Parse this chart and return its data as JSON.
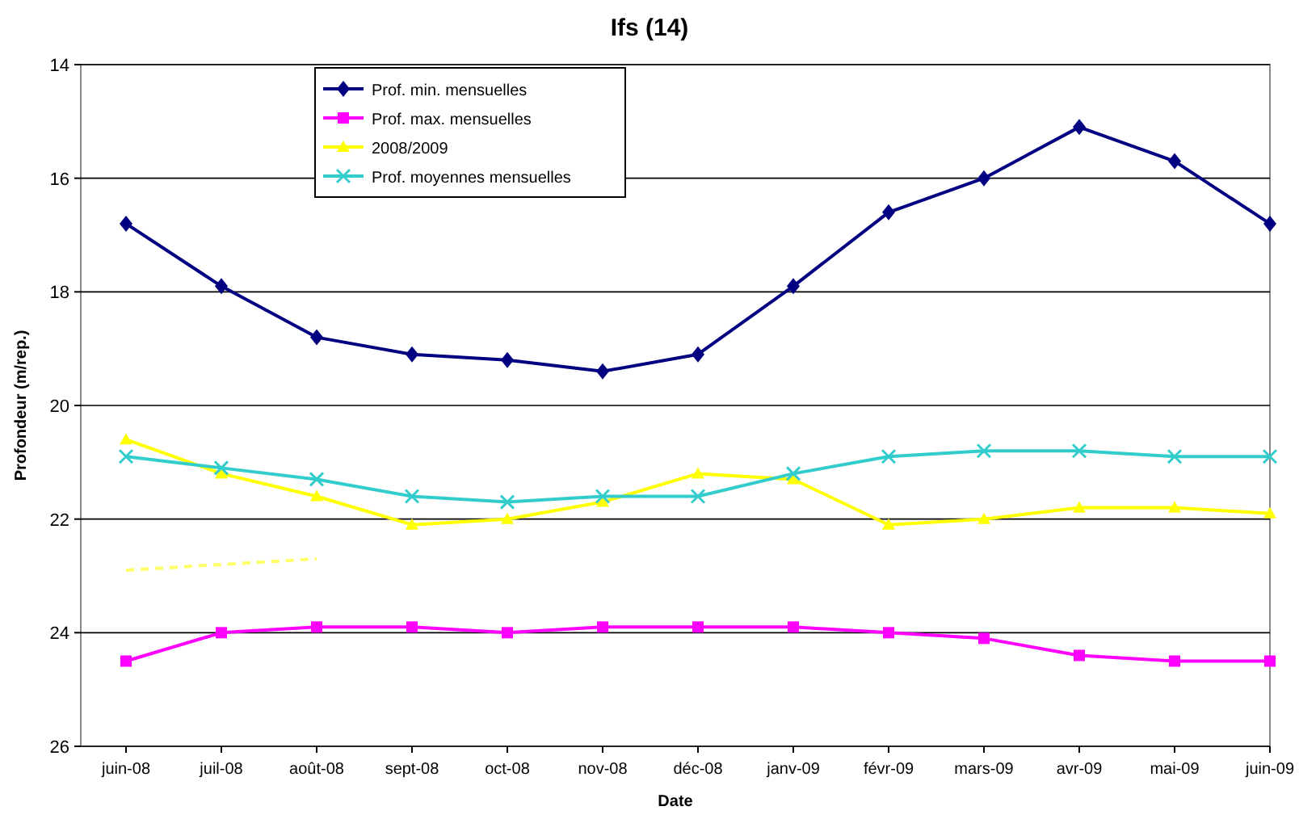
{
  "chart_data": {
    "type": "line",
    "title": "Ifs (14)",
    "xlabel": "Date",
    "ylabel": "Profondeur (m/rep.)",
    "categories": [
      "juin-08",
      "juil-08",
      "août-08",
      "sept-08",
      "oct-08",
      "nov-08",
      "déc-08",
      "janv-09",
      "févr-09",
      "mars-09",
      "avr-09",
      "mai-09",
      "juin-09"
    ],
    "ylim": [
      26,
      14
    ],
    "yticks": [
      14,
      16,
      18,
      20,
      22,
      24,
      26
    ],
    "grid": "y",
    "legend": "top",
    "series": [
      {
        "name": "Prof. min. mensuelles",
        "color": "#000080",
        "marker": "diamond",
        "values": [
          16.8,
          17.9,
          18.8,
          19.1,
          19.2,
          19.4,
          19.1,
          17.9,
          16.6,
          16.0,
          15.1,
          15.7,
          16.8
        ]
      },
      {
        "name": "Prof. max. mensuelles",
        "color": "#ff00ff",
        "marker": "square",
        "values": [
          24.5,
          24.0,
          23.9,
          23.9,
          24.0,
          23.9,
          23.9,
          23.9,
          24.0,
          24.1,
          24.4,
          24.5,
          24.5
        ]
      },
      {
        "name": "2008/2009",
        "color": "#ffff00",
        "marker": "triangle",
        "values": [
          20.6,
          21.2,
          21.6,
          22.1,
          22.0,
          21.7,
          21.2,
          21.3,
          22.1,
          22.0,
          21.8,
          21.8,
          21.9
        ]
      },
      {
        "name": "Prof. moyennes mensuelles",
        "color": "#33cccc",
        "marker": "cross",
        "values": [
          20.9,
          21.1,
          21.3,
          21.6,
          21.7,
          21.6,
          21.6,
          21.2,
          20.9,
          20.8,
          20.8,
          20.9,
          20.9
        ]
      },
      {
        "color": "#ffff66",
        "marker": "none",
        "line_style": "dashed",
        "values": [
          22.9,
          22.8,
          22.7,
          null,
          null,
          null,
          null,
          null,
          null,
          null,
          null,
          null,
          null
        ]
      }
    ]
  }
}
